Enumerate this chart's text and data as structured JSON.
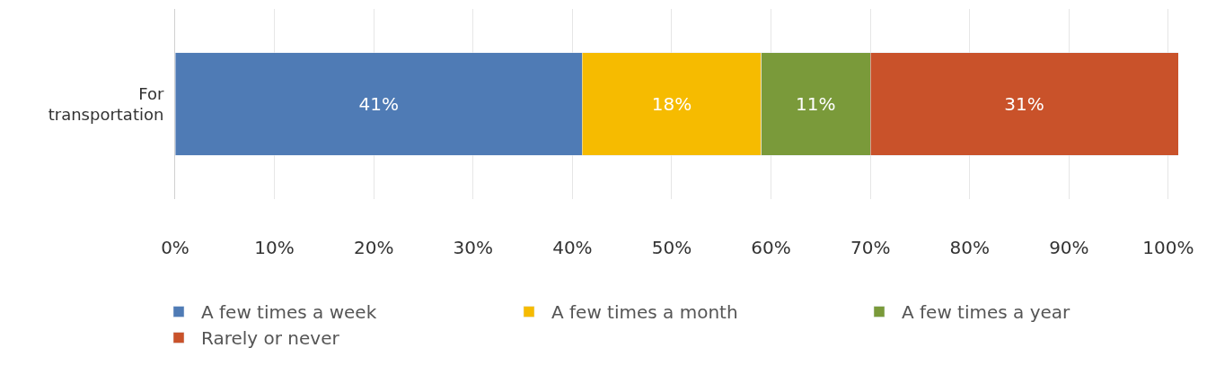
{
  "chart_data": {
    "type": "bar",
    "orientation": "horizontal",
    "stacked": true,
    "categories": [
      "For transportation"
    ],
    "series": [
      {
        "name": "A few times a week",
        "color": "#4f7bb5",
        "values": [
          41
        ],
        "value_labels": [
          "41%"
        ]
      },
      {
        "name": "A few times a month",
        "color": "#f6bb00",
        "values": [
          18
        ],
        "value_labels": [
          "18%"
        ]
      },
      {
        "name": "A few times a year",
        "color": "#7a9a3a",
        "values": [
          11
        ],
        "value_labels": [
          "11%"
        ]
      },
      {
        "name": "Rarely or never",
        "color": "#c9522a",
        "values": [
          31
        ],
        "value_labels": [
          "31%"
        ]
      }
    ],
    "xlim": [
      0,
      101
    ],
    "xticks": [
      {
        "value": 0,
        "label": "0%"
      },
      {
        "value": 10,
        "label": "10%"
      },
      {
        "value": 20,
        "label": "20%"
      },
      {
        "value": 30,
        "label": "30%"
      },
      {
        "value": 40,
        "label": "40%"
      },
      {
        "value": 50,
        "label": "50%"
      },
      {
        "value": 60,
        "label": "60%"
      },
      {
        "value": 70,
        "label": "70%"
      },
      {
        "value": 80,
        "label": "80%"
      },
      {
        "value": 90,
        "label": "90%"
      },
      {
        "value": 100,
        "label": "100%"
      }
    ],
    "grid": "x",
    "legend": "bottom"
  }
}
